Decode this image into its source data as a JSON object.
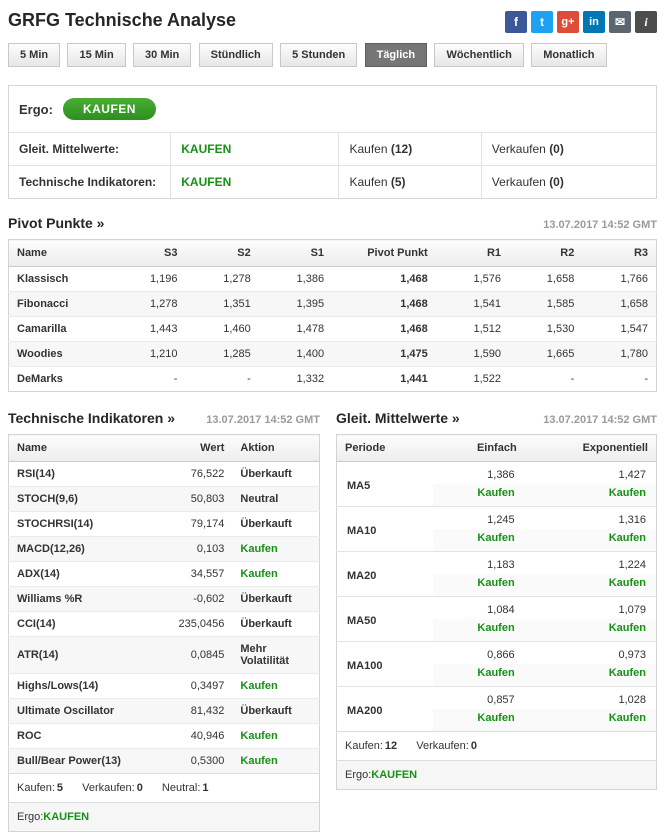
{
  "header": {
    "title": "GRFG Technische Analyse"
  },
  "social": [
    {
      "name": "facebook",
      "glyph": "f",
      "color": "#3b5998"
    },
    {
      "name": "twitter",
      "glyph": "t",
      "color": "#1da1f2"
    },
    {
      "name": "google-plus",
      "glyph": "g+",
      "color": "#dd4b39"
    },
    {
      "name": "linkedin",
      "glyph": "in",
      "color": "#0077b5"
    },
    {
      "name": "email",
      "glyph": "✉",
      "color": "#5c6670"
    },
    {
      "name": "info",
      "glyph": "i",
      "color": "#4d4d4d"
    }
  ],
  "tabs": [
    {
      "label": "5 Min",
      "state": "idle"
    },
    {
      "label": "15 Min",
      "state": "idle"
    },
    {
      "label": "30 Min",
      "state": "idle"
    },
    {
      "label": "Stündlich",
      "state": "idle"
    },
    {
      "label": "5 Stunden",
      "state": "idle"
    },
    {
      "label": "Täglich",
      "state": "active"
    },
    {
      "label": "Wöchentlich",
      "state": "idle"
    },
    {
      "label": "Monatlich",
      "state": "idle"
    }
  ],
  "colors": {
    "accent_green": "#169116",
    "active_tab": "#767676"
  },
  "summary": {
    "ergo_label": "Ergo:",
    "ergo_value": "KAUFEN",
    "rows": [
      {
        "label": "Gleit. Mittelwerte:",
        "signal": "KAUFEN",
        "buy_label": "Kaufen",
        "buy_count": "(12)",
        "sell_label": "Verkaufen",
        "sell_count": "(0)"
      },
      {
        "label": "Technische Indikatoren:",
        "signal": "KAUFEN",
        "buy_label": "Kaufen",
        "buy_count": "(5)",
        "sell_label": "Verkaufen",
        "sell_count": "(0)"
      }
    ]
  },
  "pivot": {
    "title": "Pivot Punkte »",
    "timestamp": "13.07.2017 14:52 GMT",
    "headers": [
      "Name",
      "S3",
      "S2",
      "S1",
      "Pivot Punkt",
      "R1",
      "R2",
      "R3"
    ],
    "rows": [
      {
        "name": "Klassisch",
        "s3": "1,196",
        "s2": "1,278",
        "s1": "1,386",
        "pp": "1,468",
        "r1": "1,576",
        "r2": "1,658",
        "r3": "1,766"
      },
      {
        "name": "Fibonacci",
        "s3": "1,278",
        "s2": "1,351",
        "s1": "1,395",
        "pp": "1,468",
        "r1": "1,541",
        "r2": "1,585",
        "r3": "1,658"
      },
      {
        "name": "Camarilla",
        "s3": "1,443",
        "s2": "1,460",
        "s1": "1,478",
        "pp": "1,468",
        "r1": "1,512",
        "r2": "1,530",
        "r3": "1,547"
      },
      {
        "name": "Woodies",
        "s3": "1,210",
        "s2": "1,285",
        "s1": "1,400",
        "pp": "1,475",
        "r1": "1,590",
        "r2": "1,665",
        "r3": "1,780"
      },
      {
        "name": "DeMarks",
        "s3": "-",
        "s2": "-",
        "s1": "1,332",
        "pp": "1,441",
        "r1": "1,522",
        "r2": "-",
        "r3": "-"
      }
    ]
  },
  "indicators": {
    "title": "Technische Indikatoren »",
    "timestamp": "13.07.2017 14:52 GMT",
    "headers": [
      "Name",
      "Wert",
      "Aktion"
    ],
    "rows": [
      {
        "name": "RSI(14)",
        "value": "76,522",
        "action": "Überkauft",
        "type": "plain"
      },
      {
        "name": "STOCH(9,6)",
        "value": "50,803",
        "action": "Neutral",
        "type": "plain"
      },
      {
        "name": "STOCHRSI(14)",
        "value": "79,174",
        "action": "Überkauft",
        "type": "plain"
      },
      {
        "name": "MACD(12,26)",
        "value": "0,103",
        "action": "Kaufen",
        "type": "buy"
      },
      {
        "name": "ADX(14)",
        "value": "34,557",
        "action": "Kaufen",
        "type": "buy"
      },
      {
        "name": "Williams %R",
        "value": "-0,602",
        "action": "Überkauft",
        "type": "plain"
      },
      {
        "name": "CCI(14)",
        "value": "235,0456",
        "action": "Überkauft",
        "type": "plain"
      },
      {
        "name": "ATR(14)",
        "value": "0,0845",
        "action": "Mehr Volatilität",
        "type": "plain"
      },
      {
        "name": "Highs/Lows(14)",
        "value": "0,3497",
        "action": "Kaufen",
        "type": "buy"
      },
      {
        "name": "Ultimate Oscillator",
        "value": "81,432",
        "action": "Überkauft",
        "type": "plain"
      },
      {
        "name": "ROC",
        "value": "40,946",
        "action": "Kaufen",
        "type": "buy"
      },
      {
        "name": "Bull/Bear Power(13)",
        "value": "0,5300",
        "action": "Kaufen",
        "type": "buy"
      }
    ],
    "summary": {
      "buy_label": "Kaufen:",
      "buy": "5",
      "sell_label": "Verkaufen:",
      "sell": "0",
      "neutral_label": "Neutral:",
      "neutral": "1",
      "ergo_label": "Ergo:",
      "ergo": "KAUFEN"
    }
  },
  "moving_averages": {
    "title": "Gleit. Mittelwerte »",
    "timestamp": "13.07.2017 14:52 GMT",
    "headers": [
      "Periode",
      "Einfach",
      "Exponentiell"
    ],
    "rows": [
      {
        "period": "MA5",
        "simple": "1,386",
        "simple_action": "Kaufen",
        "exp": "1,427",
        "exp_action": "Kaufen"
      },
      {
        "period": "MA10",
        "simple": "1,245",
        "simple_action": "Kaufen",
        "exp": "1,316",
        "exp_action": "Kaufen"
      },
      {
        "period": "MA20",
        "simple": "1,183",
        "simple_action": "Kaufen",
        "exp": "1,224",
        "exp_action": "Kaufen"
      },
      {
        "period": "MA50",
        "simple": "1,084",
        "simple_action": "Kaufen",
        "exp": "1,079",
        "exp_action": "Kaufen"
      },
      {
        "period": "MA100",
        "simple": "0,866",
        "simple_action": "Kaufen",
        "exp": "0,973",
        "exp_action": "Kaufen"
      },
      {
        "period": "MA200",
        "simple": "0,857",
        "simple_action": "Kaufen",
        "exp": "1,028",
        "exp_action": "Kaufen"
      }
    ],
    "summary": {
      "buy_label": "Kaufen:",
      "buy": "12",
      "sell_label": "Verkaufen:",
      "sell": "0",
      "ergo_label": "Ergo:",
      "ergo": "KAUFEN"
    }
  }
}
